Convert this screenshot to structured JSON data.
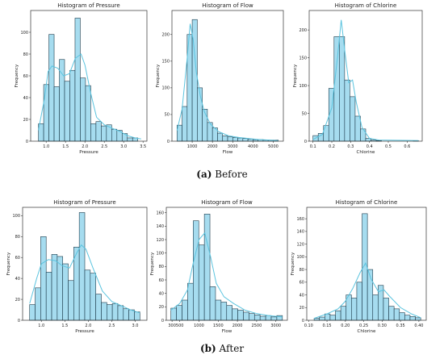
{
  "captions": [
    {
      "letter": "(a)",
      "text": " Before"
    },
    {
      "letter": "(b)",
      "text": " After"
    }
  ],
  "colors": {
    "bar_fill": "#a6dcef",
    "bar_edge": "#1c3a4a",
    "kde": "#5bc4df"
  },
  "chart_data": [
    {
      "type": "bar",
      "title": "Histogram of Pressure",
      "xlabel": "Pressure",
      "ylabel": "Frequency",
      "bin_edges": [
        0.8,
        0.935,
        1.07,
        1.205,
        1.34,
        1.475,
        1.61,
        1.745,
        1.88,
        2.015,
        2.15,
        2.285,
        2.42,
        2.555,
        2.69,
        2.825,
        2.96,
        3.095,
        3.23,
        3.365,
        3.5
      ],
      "values": [
        16,
        52,
        98,
        50,
        75,
        55,
        65,
        113,
        58,
        51,
        16,
        18,
        14,
        15,
        11,
        10,
        7,
        3,
        3,
        0
      ],
      "kde": [
        [
          0.8,
          10
        ],
        [
          0.95,
          38
        ],
        [
          1.05,
          64
        ],
        [
          1.15,
          69
        ],
        [
          1.3,
          67
        ],
        [
          1.45,
          60
        ],
        [
          1.6,
          62
        ],
        [
          1.75,
          76
        ],
        [
          1.9,
          80
        ],
        [
          2.0,
          70
        ],
        [
          2.15,
          44
        ],
        [
          2.3,
          22
        ],
        [
          2.5,
          15
        ],
        [
          2.7,
          12
        ],
        [
          2.9,
          9
        ],
        [
          3.1,
          5
        ],
        [
          3.3,
          3
        ],
        [
          3.45,
          2
        ]
      ],
      "xlim": [
        0.6,
        3.6
      ],
      "ylim": [
        0,
        120
      ],
      "xticks": [
        1.0,
        1.5,
        2.0,
        2.5,
        3.0,
        3.5
      ],
      "xticklabels": [
        "1.0",
        "1.5",
        "2.0",
        "2.5",
        "3.0",
        "3.5"
      ],
      "yticks": [
        0,
        20,
        40,
        60,
        80,
        100
      ],
      "yticklabels": [
        "0",
        "20",
        "40",
        "60",
        "80",
        "100"
      ]
    },
    {
      "type": "bar",
      "title": "Histogram of Flow",
      "xlabel": "Flow",
      "ylabel": "Frequency",
      "bin_edges": [
        250,
        500,
        750,
        1000,
        1250,
        1500,
        1750,
        2000,
        2250,
        2500,
        2750,
        3000,
        3250,
        3500,
        3750,
        4000,
        4250,
        4500,
        4750,
        5000,
        5250
      ],
      "values": [
        30,
        65,
        200,
        228,
        100,
        60,
        35,
        25,
        15,
        10,
        8,
        7,
        6,
        5,
        4,
        3,
        3,
        2,
        2,
        2
      ],
      "kde": [
        [
          250,
          20
        ],
        [
          500,
          60
        ],
        [
          750,
          155
        ],
        [
          900,
          220
        ],
        [
          1050,
          190
        ],
        [
          1200,
          130
        ],
        [
          1400,
          85
        ],
        [
          1600,
          55
        ],
        [
          1900,
          32
        ],
        [
          2300,
          18
        ],
        [
          2800,
          10
        ],
        [
          3300,
          7
        ],
        [
          3800,
          5
        ],
        [
          4300,
          3
        ],
        [
          4800,
          2
        ],
        [
          5250,
          1
        ]
      ],
      "xlim": [
        0,
        5500
      ],
      "ylim": [
        0,
        245
      ],
      "xticks": [
        1000,
        2000,
        3000,
        4000,
        5000
      ],
      "xticklabels": [
        "1000",
        "2000",
        "3000",
        "4000",
        "5000"
      ],
      "yticks": [
        0,
        50,
        100,
        150,
        200
      ],
      "yticklabels": [
        "0",
        "50",
        "100",
        "150",
        "200"
      ]
    },
    {
      "type": "bar",
      "title": "Histogram of Chlorine",
      "xlabel": "Chlorine",
      "ylabel": "Frequency",
      "bin_edges": [
        0.1,
        0.128,
        0.156,
        0.184,
        0.212,
        0.24,
        0.268,
        0.296,
        0.324,
        0.352,
        0.38,
        0.408,
        0.436,
        0.464,
        0.492,
        0.52,
        0.548,
        0.576,
        0.604,
        0.632,
        0.66
      ],
      "values": [
        10,
        14,
        28,
        95,
        188,
        188,
        110,
        80,
        45,
        22,
        5,
        2,
        1,
        0,
        0,
        0,
        0,
        0,
        0,
        1
      ],
      "kde": [
        [
          0.1,
          3
        ],
        [
          0.15,
          12
        ],
        [
          0.2,
          60
        ],
        [
          0.23,
          150
        ],
        [
          0.25,
          218
        ],
        [
          0.27,
          160
        ],
        [
          0.29,
          105
        ],
        [
          0.31,
          110
        ],
        [
          0.33,
          70
        ],
        [
          0.36,
          25
        ],
        [
          0.4,
          5
        ],
        [
          0.45,
          2
        ],
        [
          0.66,
          1
        ]
      ],
      "xlim": [
        0.08,
        0.68
      ],
      "ylim": [
        0,
        235
      ],
      "xticks": [
        0.1,
        0.2,
        0.3,
        0.4,
        0.5,
        0.6
      ],
      "xticklabels": [
        "0.1",
        "0.2",
        "0.3",
        "0.4",
        "0.5",
        "0.6"
      ],
      "yticks": [
        0,
        50,
        100,
        150,
        200
      ],
      "yticklabels": [
        "0",
        "50",
        "100",
        "150",
        "200"
      ]
    },
    {
      "type": "bar",
      "title": "Histogram of Pressure",
      "xlabel": "Pressure",
      "ylabel": "Frequency",
      "bin_edges": [
        0.75,
        0.8675,
        0.985,
        1.1025,
        1.22,
        1.3375,
        1.455,
        1.5725,
        1.69,
        1.8075,
        1.925,
        2.0425,
        2.16,
        2.2775,
        2.395,
        2.5125,
        2.63,
        2.7475,
        2.865,
        2.9825,
        3.1
      ],
      "values": [
        15,
        31,
        80,
        46,
        63,
        61,
        54,
        38,
        70,
        103,
        48,
        45,
        25,
        17,
        15,
        16,
        14,
        11,
        10,
        8
      ],
      "kde": [
        [
          0.75,
          16
        ],
        [
          0.9,
          40
        ],
        [
          1.0,
          54
        ],
        [
          1.15,
          58
        ],
        [
          1.3,
          57
        ],
        [
          1.45,
          52
        ],
        [
          1.6,
          50
        ],
        [
          1.75,
          64
        ],
        [
          1.85,
          72
        ],
        [
          1.95,
          68
        ],
        [
          2.1,
          50
        ],
        [
          2.3,
          28
        ],
        [
          2.5,
          18
        ],
        [
          2.7,
          14
        ],
        [
          2.9,
          10
        ],
        [
          3.1,
          7
        ]
      ],
      "xlim": [
        0.6,
        3.25
      ],
      "ylim": [
        0,
        108
      ],
      "xticks": [
        1.0,
        1.5,
        2.0,
        2.5,
        3.0
      ],
      "xticklabels": [
        "1.0",
        "1.5",
        "2.0",
        "2.5",
        "3.0"
      ],
      "yticks": [
        0,
        20,
        40,
        60,
        80,
        100
      ],
      "yticklabels": [
        "0",
        "20",
        "40",
        "60",
        "80",
        "100"
      ]
    },
    {
      "type": "bar",
      "title": "Histogram of Flow",
      "xlabel": "Flow",
      "ylabel": "Frequency",
      "bin_edges": [
        270,
        415,
        560,
        705,
        850,
        995,
        1140,
        1285,
        1430,
        1575,
        1720,
        1865,
        2010,
        2155,
        2300,
        2445,
        2590,
        2735,
        2880,
        3025,
        3170
      ],
      "values": [
        18,
        22,
        30,
        55,
        148,
        112,
        158,
        50,
        30,
        27,
        22,
        17,
        15,
        12,
        10,
        8,
        6,
        7,
        5,
        7
      ],
      "kde": [
        [
          270,
          15
        ],
        [
          500,
          25
        ],
        [
          700,
          45
        ],
        [
          850,
          85
        ],
        [
          1000,
          120
        ],
        [
          1150,
          130
        ],
        [
          1300,
          95
        ],
        [
          1450,
          55
        ],
        [
          1650,
          35
        ],
        [
          1900,
          25
        ],
        [
          2200,
          15
        ],
        [
          2500,
          10
        ],
        [
          2800,
          7
        ],
        [
          3170,
          5
        ]
      ],
      "xlim": [
        150,
        3300
      ],
      "ylim": [
        0,
        168
      ],
      "xticks": [
        300,
        500,
        1000,
        1500,
        2000,
        2500,
        3000
      ],
      "xticklabels": [
        "300",
        "500",
        "1000",
        "1500",
        "2000",
        "2500",
        "3000"
      ],
      "yticks": [
        0,
        20,
        40,
        60,
        80,
        100,
        120,
        140,
        160
      ],
      "yticklabels": [
        "0",
        "20",
        "40",
        "60",
        "80",
        "100",
        "120",
        "140",
        "160"
      ]
    },
    {
      "type": "bar",
      "title": "Histogram of Chlorine",
      "xlabel": "Chlorine",
      "ylabel": "Frequency",
      "bin_edges": [
        0.115,
        0.1295,
        0.144,
        0.1585,
        0.173,
        0.1875,
        0.202,
        0.2165,
        0.231,
        0.2455,
        0.26,
        0.2745,
        0.289,
        0.3035,
        0.318,
        0.3325,
        0.347,
        0.3615,
        0.376,
        0.3905,
        0.405
      ],
      "values": [
        3,
        5,
        10,
        8,
        15,
        22,
        40,
        35,
        60,
        168,
        80,
        40,
        55,
        35,
        22,
        18,
        12,
        8,
        6,
        4
      ],
      "kde": [
        [
          0.115,
          3
        ],
        [
          0.15,
          10
        ],
        [
          0.18,
          18
        ],
        [
          0.2,
          30
        ],
        [
          0.22,
          50
        ],
        [
          0.24,
          75
        ],
        [
          0.255,
          90
        ],
        [
          0.27,
          65
        ],
        [
          0.29,
          45
        ],
        [
          0.305,
          48
        ],
        [
          0.32,
          38
        ],
        [
          0.35,
          20
        ],
        [
          0.38,
          10
        ],
        [
          0.405,
          4
        ]
      ],
      "xlim": [
        0.095,
        0.42
      ],
      "ylim": [
        0,
        178
      ],
      "xticks": [
        0.1,
        0.15,
        0.2,
        0.25,
        0.3,
        0.35,
        0.4
      ],
      "xticklabels": [
        "0.10",
        "0.15",
        "0.20",
        "0.25",
        "0.30",
        "0.35",
        "0.40"
      ],
      "yticks": [
        0,
        20,
        40,
        60,
        80,
        100,
        120,
        140,
        160
      ],
      "yticklabels": [
        "0",
        "20",
        "40",
        "60",
        "80",
        "100",
        "120",
        "140",
        "160"
      ]
    }
  ]
}
